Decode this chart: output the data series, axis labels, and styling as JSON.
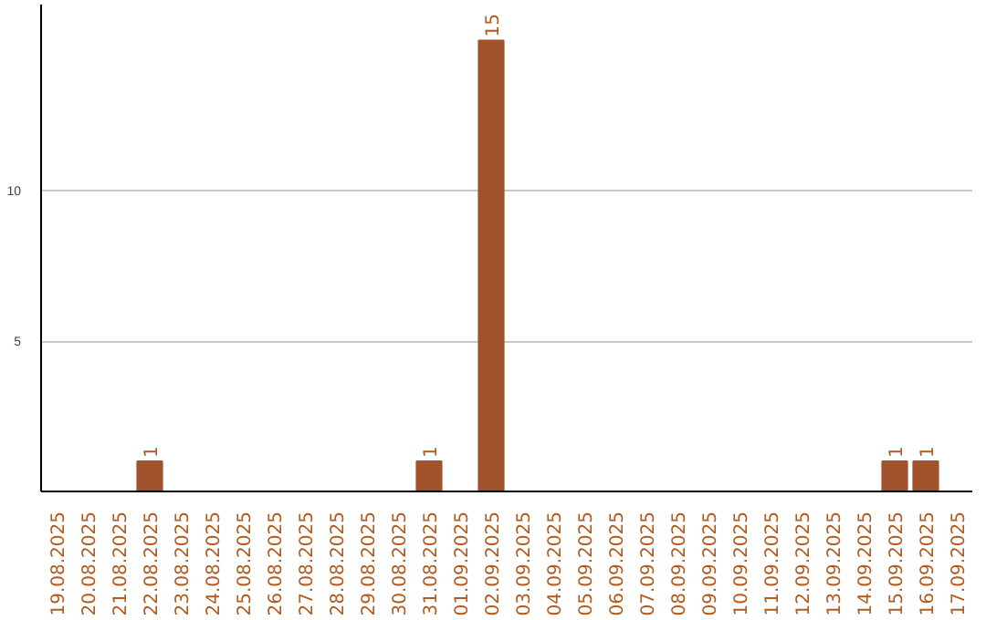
{
  "chart_data": {
    "type": "bar",
    "categories": [
      "19.08.2025",
      "20.08.2025",
      "21.08.2025",
      "22.08.2025",
      "23.08.2025",
      "24.08.2025",
      "25.08.2025",
      "26.08.2025",
      "27.08.2025",
      "28.08.2025",
      "29.08.2025",
      "30.08.2025",
      "31.08.2025",
      "01.09.2025",
      "02.09.2025",
      "03.09.2025",
      "04.09.2025",
      "05.09.2025",
      "06.09.2025",
      "07.09.2025",
      "08.09.2025",
      "09.09.2025",
      "10.09.2025",
      "11.09.2025",
      "12.09.2025",
      "13.09.2025",
      "14.09.2025",
      "15.09.2025",
      "16.09.2025",
      "17.09.2025"
    ],
    "values": [
      0,
      0,
      0,
      1,
      0,
      0,
      0,
      0,
      0,
      0,
      0,
      0,
      1,
      0,
      15,
      0,
      0,
      0,
      0,
      0,
      0,
      0,
      0,
      0,
      0,
      0,
      0,
      1,
      1,
      0
    ],
    "color": "#a0522d",
    "ylim": [
      0,
      16.2
    ],
    "yticks": [
      5,
      10
    ],
    "grid": "y",
    "value_labels": [
      null,
      null,
      null,
      "1",
      null,
      null,
      null,
      null,
      null,
      null,
      null,
      null,
      "1",
      null,
      "15",
      null,
      null,
      null,
      null,
      null,
      null,
      null,
      null,
      null,
      null,
      null,
      null,
      "1",
      "1",
      null
    ]
  }
}
